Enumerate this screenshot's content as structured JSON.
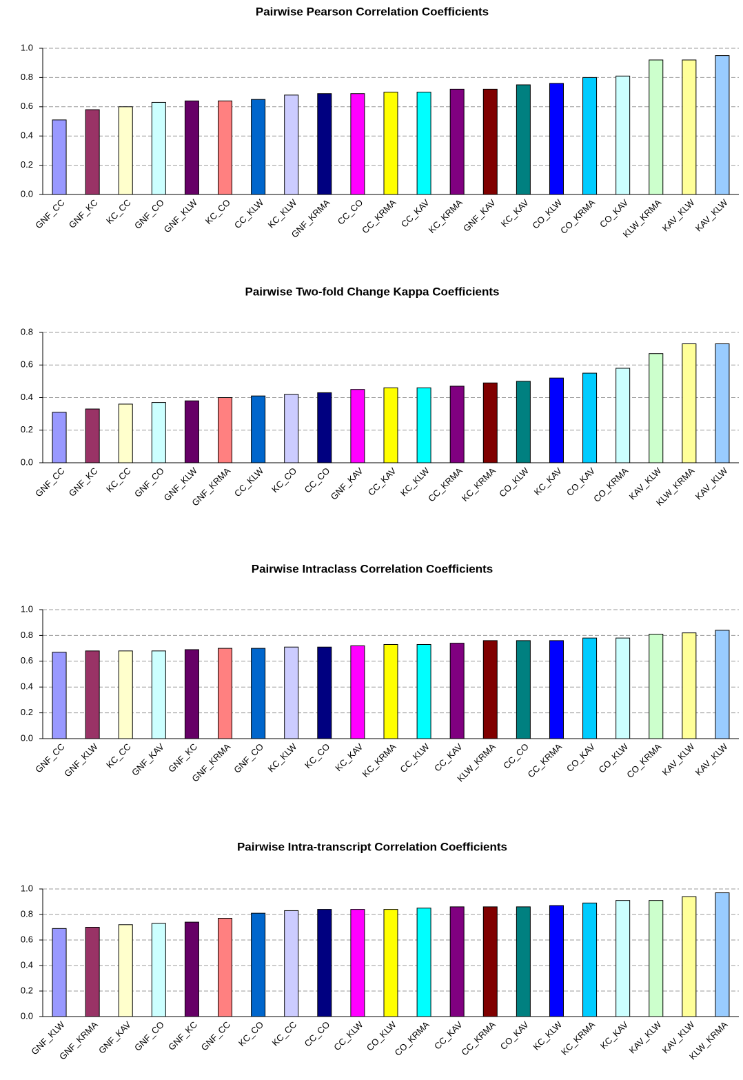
{
  "chart_data": [
    {
      "type": "bar",
      "title": "Pairwise Pearson Correlation Coefficients",
      "categories": [
        "GNF_CC",
        "GNF_KC",
        "KC_CC",
        "GNF_CO",
        "GNF_KLW",
        "KC_CO",
        "CC_KLW",
        "KC_KLW",
        "GNF_KRMA",
        "CC_CO",
        "CC_KRMA",
        "CC_KAV",
        "KC_KRMA",
        "GNF_KAV",
        "KC_KAV",
        "CO_KLW",
        "CO_KRMA",
        "CO_KAV",
        "KLW_KRMA",
        "KAV_KLW",
        "KAV_KLW"
      ],
      "values": [
        0.51,
        0.58,
        0.6,
        0.63,
        0.64,
        0.64,
        0.65,
        0.68,
        0.69,
        0.69,
        0.7,
        0.7,
        0.72,
        0.72,
        0.75,
        0.76,
        0.8,
        0.81,
        0.92,
        0.92,
        0.95
      ],
      "colors": [
        "#9999ff",
        "#993366",
        "#ffffcc",
        "#ccffff",
        "#660066",
        "#ff8080",
        "#0066cc",
        "#ccccff",
        "#000080",
        "#ff00ff",
        "#ffff00",
        "#00ffff",
        "#800080",
        "#800000",
        "#008080",
        "#0000ff",
        "#00ccff",
        "#ccffff",
        "#ccffcc",
        "#ffff99",
        "#99ccff"
      ],
      "ylim": [
        0,
        1
      ],
      "yticks": [
        {
          "value": 0,
          "label": "0.0"
        },
        {
          "value": 0.2,
          "label": "0.2"
        },
        {
          "value": 0.4,
          "label": "0.4"
        },
        {
          "value": 0.6,
          "label": "0.6"
        },
        {
          "value": 0.8,
          "label": "0.8"
        },
        {
          "value": 1,
          "label": "1.0"
        }
      ],
      "grid": true
    },
    {
      "type": "bar",
      "title": "Pairwise Two-fold Change Kappa Coefficients",
      "categories": [
        "GNF_CC",
        "GNF_KC",
        "KC_CC",
        "GNF_CO",
        "GNF_KLW",
        "GNF_KRMA",
        "CC_KLW",
        "KC_CO",
        "CC_CO",
        "GNF_KAV",
        "CC_KAV",
        "KC_KLW",
        "CC_KRMA",
        "KC_KRMA",
        "CO_KLW",
        "KC_KAV",
        "CO_KAV",
        "CO_KRMA",
        "KAV_KLW",
        "KLW_KRMA",
        "KAV_KLW"
      ],
      "values": [
        0.31,
        0.33,
        0.36,
        0.37,
        0.38,
        0.4,
        0.41,
        0.42,
        0.43,
        0.45,
        0.46,
        0.46,
        0.47,
        0.49,
        0.5,
        0.52,
        0.55,
        0.58,
        0.67,
        0.73,
        0.73
      ],
      "colors": [
        "#9999ff",
        "#993366",
        "#ffffcc",
        "#ccffff",
        "#660066",
        "#ff8080",
        "#0066cc",
        "#ccccff",
        "#000080",
        "#ff00ff",
        "#ffff00",
        "#00ffff",
        "#800080",
        "#800000",
        "#008080",
        "#0000ff",
        "#00ccff",
        "#ccffff",
        "#ccffcc",
        "#ffff99",
        "#99ccff"
      ],
      "ylim": [
        0,
        0.8
      ],
      "yticks": [
        {
          "value": 0,
          "label": "0.0"
        },
        {
          "value": 0.2,
          "label": "0.2"
        },
        {
          "value": 0.4,
          "label": "0.4"
        },
        {
          "value": 0.6,
          "label": "0.6"
        },
        {
          "value": 0.8,
          "label": "0.8"
        }
      ],
      "grid": true
    },
    {
      "type": "bar",
      "title": "Pairwise Intraclass Correlation Coefficients",
      "categories": [
        "GNF_CC",
        "GNF_KLW",
        "KC_CC",
        "GNF_KAV",
        "GNF_KC",
        "GNF_KRMA",
        "GNF_CO",
        "KC_KLW",
        "KC_CO",
        "KC_KAV",
        "KC_KRMA",
        "CC_KLW",
        "CC_KAV",
        "KLW_KRMA",
        "CC_CO",
        "CC_KRMA",
        "CO_KAV",
        "CO_KLW",
        "CO_KRMA",
        "KAV_KLW",
        "KAV_KLW"
      ],
      "values": [
        0.67,
        0.68,
        0.68,
        0.68,
        0.69,
        0.7,
        0.7,
        0.71,
        0.71,
        0.72,
        0.73,
        0.73,
        0.74,
        0.76,
        0.76,
        0.76,
        0.78,
        0.78,
        0.81,
        0.82,
        0.84
      ],
      "colors": [
        "#9999ff",
        "#993366",
        "#ffffcc",
        "#ccffff",
        "#660066",
        "#ff8080",
        "#0066cc",
        "#ccccff",
        "#000080",
        "#ff00ff",
        "#ffff00",
        "#00ffff",
        "#800080",
        "#800000",
        "#008080",
        "#0000ff",
        "#00ccff",
        "#ccffff",
        "#ccffcc",
        "#ffff99",
        "#99ccff"
      ],
      "ylim": [
        0,
        1
      ],
      "yticks": [
        {
          "value": 0,
          "label": "0.0"
        },
        {
          "value": 0.2,
          "label": "0.2"
        },
        {
          "value": 0.4,
          "label": "0.4"
        },
        {
          "value": 0.6,
          "label": "0.6"
        },
        {
          "value": 0.8,
          "label": "0.8"
        },
        {
          "value": 1,
          "label": "1.0"
        }
      ],
      "grid": true
    },
    {
      "type": "bar",
      "title": "Pairwise Intra-transcript Correlation Coefficients",
      "categories": [
        "GNF_KLW",
        "GNF_KRMA",
        "GNF_KAV",
        "GNF_CO",
        "GNF_KC",
        "GNF_CC",
        "KC_CO",
        "KC_CC",
        "CC_CO",
        "CC_KLW",
        "CO_KLW",
        "CO_KRMA",
        "CC_KAV",
        "CC_KRMA",
        "CO_KAV",
        "KC_KLW",
        "KC_KRMA",
        "KC_KAV",
        "KAV_KLW",
        "KAV_KLW",
        "KLW_KRMA"
      ],
      "values": [
        0.69,
        0.7,
        0.72,
        0.73,
        0.74,
        0.77,
        0.81,
        0.83,
        0.84,
        0.84,
        0.84,
        0.85,
        0.86,
        0.86,
        0.86,
        0.87,
        0.89,
        0.91,
        0.91,
        0.94,
        0.97
      ],
      "colors": [
        "#9999ff",
        "#993366",
        "#ffffcc",
        "#ccffff",
        "#660066",
        "#ff8080",
        "#0066cc",
        "#ccccff",
        "#000080",
        "#ff00ff",
        "#ffff00",
        "#00ffff",
        "#800080",
        "#800000",
        "#008080",
        "#0000ff",
        "#00ccff",
        "#ccffff",
        "#ccffcc",
        "#ffff99",
        "#99ccff"
      ],
      "ylim": [
        0,
        1
      ],
      "yticks": [
        {
          "value": 0,
          "label": "0.0"
        },
        {
          "value": 0.2,
          "label": "0.2"
        },
        {
          "value": 0.4,
          "label": "0.4"
        },
        {
          "value": 0.6,
          "label": "0.6"
        },
        {
          "value": 0.8,
          "label": "0.8"
        },
        {
          "value": 1,
          "label": "1.0"
        }
      ],
      "grid": true
    }
  ]
}
